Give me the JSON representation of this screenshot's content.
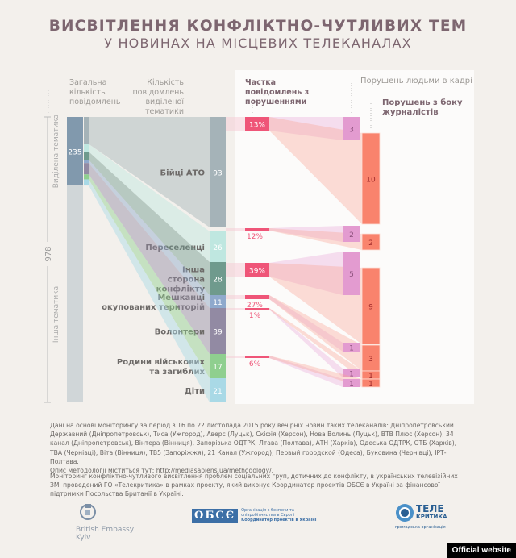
{
  "header": {
    "title": "ВИСВІТЛЕННЯ КОНФЛІКТНО-ЧУТЛИВИХ ТЕМ",
    "subtitle": "У НОВИНАХ НА МІСЦЕВИХ ТЕЛЕКАНАЛАХ"
  },
  "column_headers": {
    "total": "Загальна кількість повідомлень",
    "selected": "Кількість повідомлень виділеної тематики",
    "share": "Частка повідомлень з порушеннями",
    "people": "Порушень людьми в кадрі",
    "journalists": "Порушень з боку журналістів"
  },
  "chart_data": {
    "type": "sankey",
    "title": "Висвітлення конфліктно-чутливих тем у новинах на місцевих телеканалах",
    "total_messages": 978,
    "total_label": "978",
    "split": [
      {
        "name": "Виділена тематика",
        "value": 235,
        "value_label": "235"
      },
      {
        "name": "Інша тематика",
        "value": 743
      }
    ],
    "categories": [
      {
        "name": "Бійці АТО",
        "count": 93,
        "violation_share_pct": 13,
        "people_violations": 3,
        "journalist_violations": 10,
        "color": "#a5b3b8"
      },
      {
        "name": "Переселенці",
        "count": 26,
        "violation_share_pct": 12,
        "people_violations": 2,
        "journalist_violations": 2,
        "color": "#bfe7e0"
      },
      {
        "name": "Інша сторона конфлікту",
        "count": 28,
        "violation_share_pct": 39,
        "people_violations": 5,
        "journalist_violations": 9,
        "color": "#6f9a8d"
      },
      {
        "name": "Мешканці окупованих територій",
        "count": 11,
        "violation_share_pct": 27,
        "people_violations": 1,
        "journalist_violations": 3,
        "color": "#8fa9cc"
      },
      {
        "name": "Волонтери",
        "count": 39,
        "violation_share_pct": 1,
        "people_violations": 1,
        "journalist_violations": 1,
        "color": "#928aa3"
      },
      {
        "name": "Родини військових та загиблих",
        "count": 17,
        "violation_share_pct": 6,
        "people_violations": 1,
        "journalist_violations": 1,
        "color": "#8fcf8f"
      },
      {
        "name": "Діти",
        "count": 21,
        "violation_share_pct": null,
        "people_violations": null,
        "journalist_violations": null,
        "color": "#a9d9e6"
      }
    ],
    "colors": {
      "total_bar": "#8199ad",
      "other_bar": "#d0d6d8",
      "share_bar": "#ef5578",
      "people_bar": "#e39bd0",
      "journalist_bar": "#f9836d"
    }
  },
  "category_labels": [
    "Бійці АТО",
    "Переселенці",
    "Інша сторона конфлікту",
    "Мешканці окупованих територій",
    "Волонтери",
    "Родини військових та загиблих",
    "Діти"
  ],
  "footer": {
    "sources": "Дані на основі моніторингу за період з 16 по 22 листопада 2015 року вечірніх новин таких телеканалів: Дніпропетровський Державний (Дніпропетровськ), Тиса (Ужгород), Аверс (Луцьк), Скіфія (Херсон), Нова Волинь (Луцьк), ВТВ Плюс (Херсон), 34 канал (Дніпропетровськ), Вінтера (Вінниця), Запорізька ОДТРК, Лтава (Полтава), АТН (Харків), Одеська ОДТРК, ОТБ (Харків), ТВА (Чернівці), Віта (Вінниця), ТВ5 (Запоріжжя), 21 Канал (Ужгород), Первый городской (Одеса), Буковина (Чернівці), ІРТ-Полтава.",
    "methodology": "Опис методології міститься тут: http://mediasapiens.ua/methodology/.",
    "credits": "Моніторинг конфліктно-чутливого висвітлення проблем соціальних груп, дотичних до конфлікту, в українських телевізійних ЗМІ проведений ГО «Телекритика» в рамках проекту, який виконує Координатор проектів ОБСЄ в Україні за фінансової підтримки Посольства Британії в Україні."
  },
  "logos": {
    "british_embassy_line1": "British Embassy",
    "british_embassy_line2": "Kyiv",
    "osce_mark": "ОБСЄ",
    "osce_line1": "Організація з безпеки та",
    "osce_line2": "співробітництва в Європі",
    "osce_line3": "Координатор проектів в Україні",
    "telekrytyka_1": "ТЕЛЕ",
    "telekrytyka_2": "КРИТИКА",
    "telekrytyka_3": "громадська організація"
  },
  "badge": {
    "label": "Official website"
  }
}
